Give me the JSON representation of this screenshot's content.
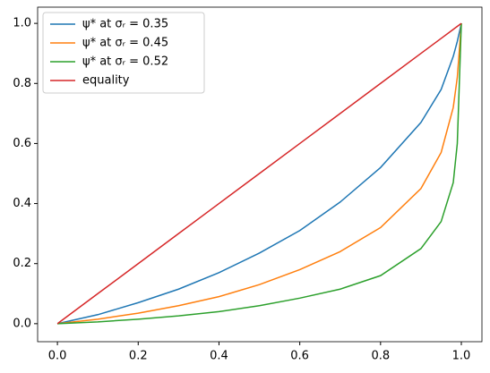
{
  "chart_data": {
    "type": "line",
    "x": [
      0,
      0.1,
      0.2,
      0.3,
      0.4,
      0.5,
      0.6,
      0.7,
      0.8,
      0.9,
      0.95,
      0.98,
      0.99,
      1
    ],
    "series": [
      {
        "name": "ψ* at σᵣ = 0.35",
        "color": "#1f77b4",
        "values": [
          0,
          0.03,
          0.07,
          0.115,
          0.17,
          0.235,
          0.31,
          0.405,
          0.52,
          0.67,
          0.78,
          0.89,
          0.94,
          1
        ]
      },
      {
        "name": "ψ* at σᵣ = 0.45",
        "color": "#ff7f0e",
        "values": [
          0,
          0.015,
          0.035,
          0.06,
          0.09,
          0.13,
          0.18,
          0.24,
          0.32,
          0.45,
          0.57,
          0.72,
          0.82,
          1
        ]
      },
      {
        "name": "ψ* at σᵣ = 0.52",
        "color": "#2ca02c",
        "values": [
          0,
          0.006,
          0.015,
          0.026,
          0.04,
          0.06,
          0.085,
          0.115,
          0.16,
          0.25,
          0.34,
          0.47,
          0.6,
          1
        ]
      },
      {
        "name": "equality",
        "color": "#d62728",
        "values": [
          0,
          0.1,
          0.2,
          0.3,
          0.4,
          0.5,
          0.6,
          0.7,
          0.8,
          0.9,
          0.95,
          0.98,
          0.99,
          1
        ]
      }
    ],
    "xlim": [
      -0.049,
      1.051
    ],
    "ylim": [
      -0.06,
      1.054
    ],
    "xticks": [
      {
        "value": 0,
        "label": "0.0"
      },
      {
        "value": 0.2,
        "label": "0.2"
      },
      {
        "value": 0.4,
        "label": "0.4"
      },
      {
        "value": 0.6,
        "label": "0.6"
      },
      {
        "value": 0.8,
        "label": "0.8"
      },
      {
        "value": 1,
        "label": "1.0"
      }
    ],
    "yticks": [
      {
        "value": 0,
        "label": "0.0"
      },
      {
        "value": 0.2,
        "label": "0.2"
      },
      {
        "value": 0.4,
        "label": "0.4"
      },
      {
        "value": 0.6,
        "label": "0.6"
      },
      {
        "value": 0.8,
        "label": "0.8"
      },
      {
        "value": 1,
        "label": "1.0"
      }
    ],
    "legend": "upper left",
    "grid": false
  }
}
